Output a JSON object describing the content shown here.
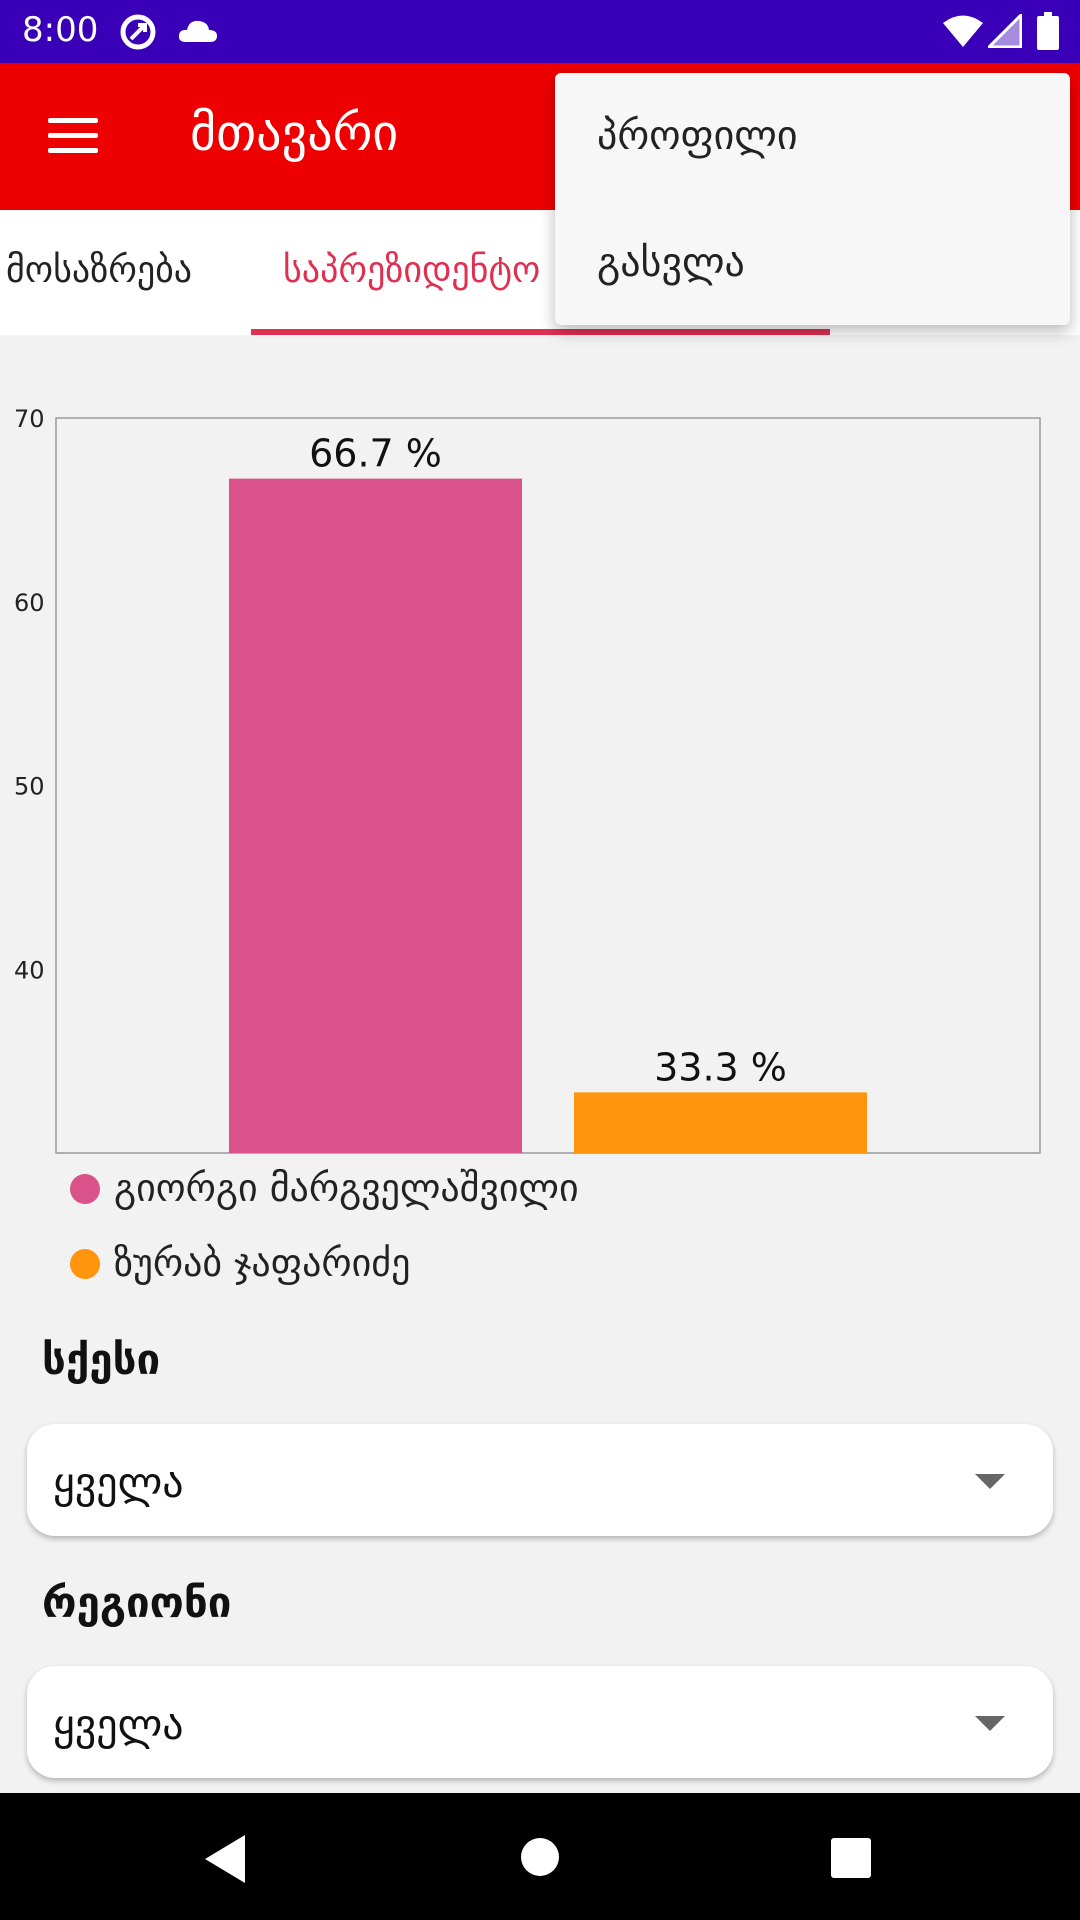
{
  "status_bar": {
    "time": "8:00",
    "icons": [
      "data-saver-icon",
      "cloud-icon",
      "wifi-icon",
      "cellular-signal-icon",
      "battery-icon"
    ]
  },
  "app_bar": {
    "title": "მთავარი",
    "menu_icon": "hamburger-menu-icon"
  },
  "tabs": [
    {
      "label": "მოსაზრება",
      "active": false
    },
    {
      "label": "საპრეზიდენტო",
      "active": true
    }
  ],
  "chart_data": {
    "type": "bar",
    "categories": [
      "გიორგი მარგველაშვილი",
      "ზურაბ ჯაფარიძე"
    ],
    "values": [
      66.7,
      33.3
    ],
    "data_labels": [
      "66.7 %",
      "33.3 %"
    ],
    "colors": [
      "#da528a",
      "#ff950d"
    ],
    "ylim": [
      30,
      70
    ],
    "yticks": [
      40,
      50,
      60,
      70
    ],
    "legend_position": "bottom-left",
    "grid": false
  },
  "legend": [
    {
      "label": "გიორგი მარგველაშვილი",
      "color": "#da528a"
    },
    {
      "label": "ზურაბ ჯაფარიძე",
      "color": "#ff950d"
    }
  ],
  "filters": {
    "gender": {
      "label": "სქესი",
      "value": "ყველა"
    },
    "region": {
      "label": "რეგიონი",
      "value": "ყველა"
    }
  },
  "popup_menu": {
    "items": [
      "პროფილი",
      "გასვლა"
    ]
  },
  "colors": {
    "status_bar": "#3a00b8",
    "app_bar": "#ee0000",
    "tab_accent": "#e03050"
  },
  "nav_bar": {
    "icons": [
      "back-icon",
      "home-icon",
      "recents-icon"
    ]
  }
}
